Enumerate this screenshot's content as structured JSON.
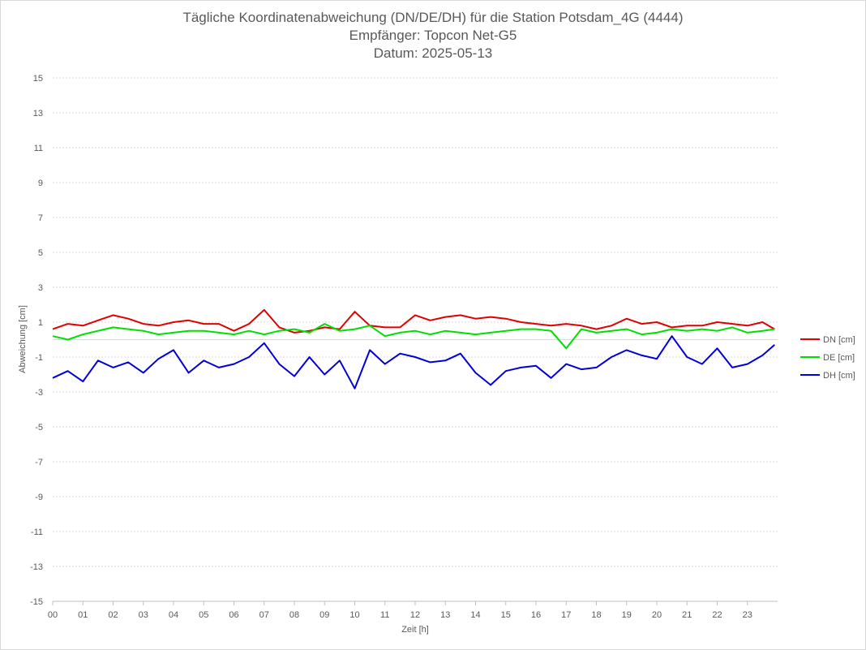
{
  "chart_data": {
    "type": "line",
    "title": "Tägliche Koordinatenabweichung (DN/DE/DH) für die Station Potsdam_4G (4444)",
    "subtitle_1": "Empfänger: Topcon Net-G5",
    "subtitle_2": "Datum: 2025-05-13",
    "xlabel": "Zeit [h]",
    "ylabel": "Abweichung [cm]",
    "xlim": [
      0,
      24
    ],
    "ylim": [
      -15,
      15
    ],
    "x_ticks": [
      "00",
      "01",
      "02",
      "03",
      "04",
      "05",
      "06",
      "07",
      "08",
      "09",
      "10",
      "11",
      "12",
      "13",
      "14",
      "15",
      "16",
      "17",
      "18",
      "19",
      "20",
      "21",
      "22",
      "23"
    ],
    "y_ticks": [
      15,
      13,
      11,
      9,
      7,
      5,
      3,
      1,
      -1,
      -3,
      -5,
      -7,
      -9,
      -11,
      -13,
      -15
    ],
    "grid": true,
    "legend_position": "right",
    "series": [
      {
        "name": "DN [cm]",
        "color": "#e00000",
        "x": [
          0,
          0.5,
          1,
          1.5,
          2,
          2.5,
          3,
          3.5,
          4,
          4.5,
          5,
          5.5,
          6,
          6.5,
          7,
          7.5,
          8,
          8.5,
          9,
          9.5,
          10,
          10.5,
          11,
          11.5,
          12,
          12.5,
          13,
          13.5,
          14,
          14.5,
          15,
          15.5,
          16,
          16.5,
          17,
          17.5,
          18,
          18.5,
          19,
          19.5,
          20,
          20.5,
          21,
          21.5,
          22,
          22.5,
          23,
          23.5,
          23.9
        ],
        "y": [
          0.6,
          0.9,
          0.8,
          1.1,
          1.4,
          1.2,
          0.9,
          0.8,
          1.0,
          1.1,
          0.9,
          0.9,
          0.5,
          0.9,
          1.7,
          0.7,
          0.4,
          0.5,
          0.7,
          0.6,
          1.6,
          0.8,
          0.7,
          0.7,
          1.4,
          1.1,
          1.3,
          1.4,
          1.2,
          1.3,
          1.2,
          1.0,
          0.9,
          0.8,
          0.9,
          0.8,
          0.6,
          0.8,
          1.2,
          0.9,
          1.0,
          0.7,
          0.8,
          0.8,
          1.0,
          0.9,
          0.8,
          1.0,
          0.6
        ]
      },
      {
        "name": "DE [cm]",
        "color": "#00e000",
        "x": [
          0,
          0.5,
          1,
          1.5,
          2,
          2.5,
          3,
          3.5,
          4,
          4.5,
          5,
          5.5,
          6,
          6.5,
          7,
          7.5,
          8,
          8.5,
          9,
          9.5,
          10,
          10.5,
          11,
          11.5,
          12,
          12.5,
          13,
          13.5,
          14,
          14.5,
          15,
          15.5,
          16,
          16.5,
          17,
          17.5,
          18,
          18.5,
          19,
          19.5,
          20,
          20.5,
          21,
          21.5,
          22,
          22.5,
          23,
          23.5,
          23.9
        ],
        "y": [
          0.2,
          0.0,
          0.3,
          0.5,
          0.7,
          0.6,
          0.5,
          0.3,
          0.4,
          0.5,
          0.5,
          0.4,
          0.3,
          0.5,
          0.3,
          0.5,
          0.6,
          0.4,
          0.9,
          0.5,
          0.6,
          0.8,
          0.2,
          0.4,
          0.5,
          0.3,
          0.5,
          0.4,
          0.3,
          0.4,
          0.5,
          0.6,
          0.6,
          0.5,
          -0.5,
          0.6,
          0.4,
          0.5,
          0.6,
          0.3,
          0.4,
          0.6,
          0.5,
          0.6,
          0.5,
          0.7,
          0.4,
          0.5,
          0.6
        ]
      },
      {
        "name": "DH [cm]",
        "color": "#0000d8",
        "x": [
          0,
          0.5,
          1,
          1.5,
          2,
          2.5,
          3,
          3.5,
          4,
          4.5,
          5,
          5.5,
          6,
          6.5,
          7,
          7.5,
          8,
          8.5,
          9,
          9.5,
          10,
          10.5,
          11,
          11.5,
          12,
          12.5,
          13,
          13.5,
          14,
          14.5,
          15,
          15.5,
          16,
          16.5,
          17,
          17.5,
          18,
          18.5,
          19,
          19.5,
          20,
          20.5,
          21,
          21.5,
          22,
          22.5,
          23,
          23.5,
          23.9
        ],
        "y": [
          -2.2,
          -1.8,
          -2.4,
          -1.2,
          -1.6,
          -1.3,
          -1.9,
          -1.1,
          -0.6,
          -1.9,
          -1.2,
          -1.6,
          -1.4,
          -1.0,
          -0.2,
          -1.4,
          -2.1,
          -1.0,
          -2.0,
          -1.2,
          -2.8,
          -0.6,
          -1.4,
          -0.8,
          -1.0,
          -1.3,
          -1.2,
          -0.8,
          -1.9,
          -2.6,
          -1.8,
          -1.6,
          -1.5,
          -2.2,
          -1.4,
          -1.7,
          -1.6,
          -1.0,
          -0.6,
          -0.9,
          -1.1,
          0.2,
          -1.0,
          -1.4,
          -0.5,
          -1.6,
          -1.4,
          -0.9,
          -0.3
        ]
      }
    ]
  }
}
